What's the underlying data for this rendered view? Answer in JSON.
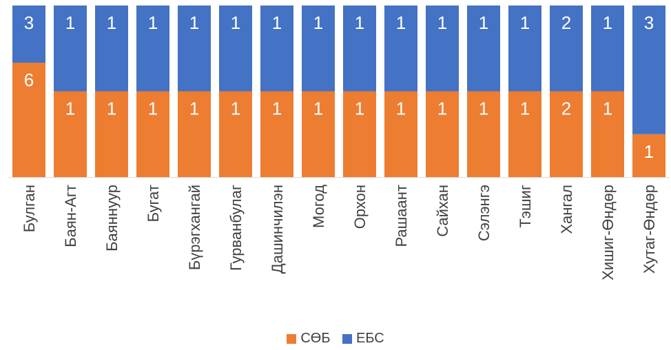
{
  "chart_data": {
    "type": "bar",
    "stacked": "100%",
    "categories": [
      "Булган",
      "Баян-Агт",
      "Баяннуур",
      "Бугат",
      "Бүрэгхангай",
      "Гурванбулаг",
      "Дашинчилэн",
      "Могод",
      "Орхон",
      "Рашаант",
      "Сайхан",
      "Сэлэнгэ",
      "Тэшиг",
      "Хангал",
      "Хишиг-Өндөр",
      "Хутаг-Өндөр"
    ],
    "series": [
      {
        "name": "СӨБ",
        "color": "#ED7D31",
        "values": [
          6,
          1,
          1,
          1,
          1,
          1,
          1,
          1,
          1,
          1,
          1,
          1,
          1,
          2,
          1,
          1
        ]
      },
      {
        "name": "ЕБС",
        "color": "#4472C4",
        "values": [
          3,
          1,
          1,
          1,
          1,
          1,
          1,
          1,
          1,
          1,
          1,
          1,
          1,
          2,
          1,
          3
        ]
      }
    ],
    "legend": "bottom",
    "grid": false
  }
}
